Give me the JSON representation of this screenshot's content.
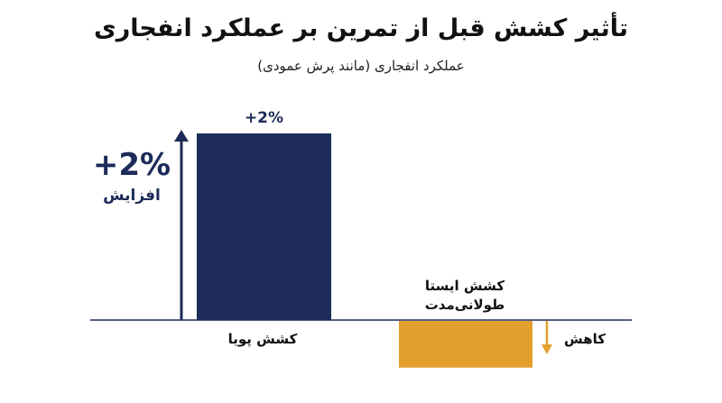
{
  "chart_data": {
    "type": "bar",
    "title": "تأثیر کشش قبل از تمرین بر عملکرد انفجاری",
    "subtitle": "عملکرد انفجاری (مانند پرش عمودی)",
    "categories": [
      "کشش پویا",
      "کشش ایستا طولانی‌مدت"
    ],
    "category_lines": [
      [
        "کشش پویا"
      ],
      [
        "کشش ایستا",
        "طولانی‌مدت"
      ]
    ],
    "values": [
      2,
      -0.5
    ],
    "data_labels": [
      "+2%",
      ""
    ],
    "ylim": [
      -0.5,
      2
    ],
    "grid": false,
    "increase_annotation": {
      "value_text": "+2%",
      "word": "افزایش",
      "color": "#1c2b58"
    },
    "decrease_annotation": {
      "word": "کاهش",
      "color": "#e3a02c"
    },
    "colors": [
      "#1c2b58",
      "#e3a02c"
    ]
  }
}
